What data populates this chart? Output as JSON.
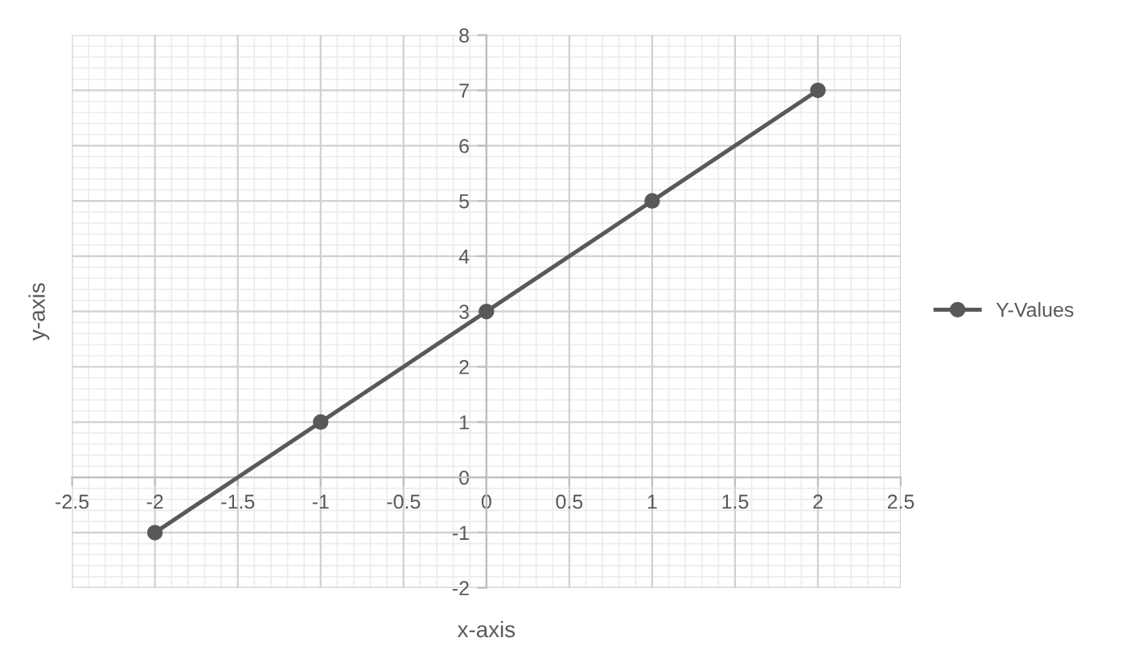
{
  "chart_data": {
    "type": "line",
    "xlabel": "x-axis",
    "ylabel": "y-axis",
    "x": [
      -2,
      -1,
      0,
      1,
      2
    ],
    "series": [
      {
        "name": "Y-Values",
        "color": "#595959",
        "values": [
          -1,
          1,
          3,
          5,
          7
        ]
      }
    ],
    "xlim": [
      -2.5,
      2.5
    ],
    "xticks": [
      -2.5,
      -2,
      -1.5,
      -1,
      -0.5,
      0,
      0.5,
      1,
      1.5,
      2,
      2.5
    ],
    "ylim": [
      -2,
      8
    ],
    "yticks": [
      -2,
      -1,
      0,
      1,
      2,
      3,
      4,
      5,
      6,
      7,
      8
    ],
    "grid": true,
    "legend": "right",
    "marker": "circle",
    "line_style": "solid"
  }
}
